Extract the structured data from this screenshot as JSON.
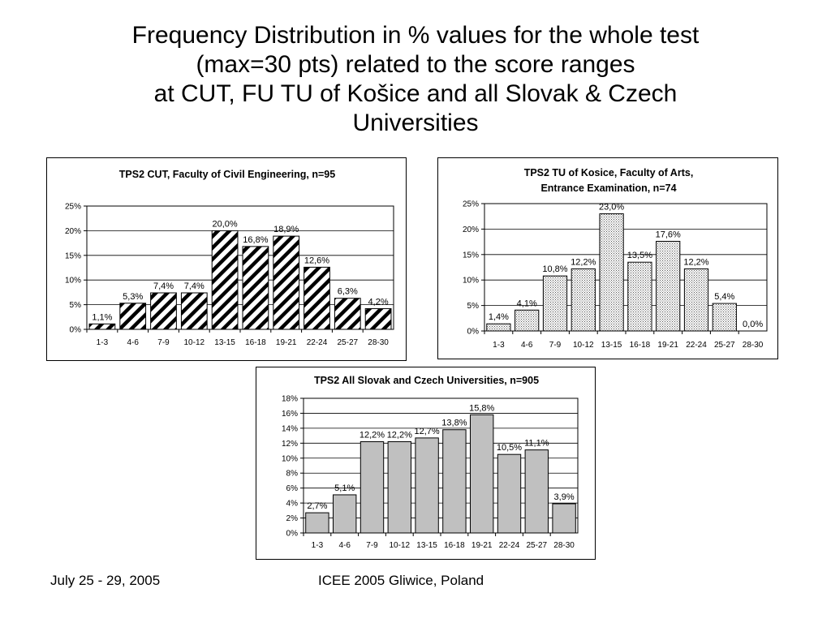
{
  "slide": {
    "title_lines": [
      "Frequency Distribution in % values for the whole test",
      "(max=30 pts) related to the score ranges",
      "at CUT, FU TU of Košice and all Slovak & Czech",
      "Universities"
    ]
  },
  "footer": {
    "date": "July 25 - 29, 2005",
    "event": "ICEE 2005 Gliwice, Poland"
  },
  "chart_data": [
    {
      "type": "bar",
      "title_lines": [
        "TPS2 CUT, Faculty of Civil Engineering, n=95"
      ],
      "categories": [
        "1-3",
        "4-6",
        "7-9",
        "10-12",
        "13-15",
        "16-18",
        "19-21",
        "22-24",
        "25-27",
        "28-30"
      ],
      "values": [
        1.1,
        5.3,
        7.4,
        7.4,
        20.0,
        16.8,
        18.9,
        12.6,
        6.3,
        4.2
      ],
      "data_labels": [
        "1,1%",
        "5,3%",
        "7,4%",
        "7,4%",
        "20,0%",
        "16,8%",
        "18,9%",
        "12,6%",
        "6,3%",
        "4,2%"
      ],
      "yticks": [
        "0%",
        "5%",
        "10%",
        "15%",
        "20%",
        "25%"
      ],
      "ylim": [
        0,
        25
      ],
      "grid": true,
      "bar_fill": "diagonal-hatch",
      "colors": {
        "fill": "#ffffff",
        "pattern": "#000000",
        "stroke": "#000000",
        "grid": "#000000"
      }
    },
    {
      "type": "bar",
      "title_lines": [
        "TPS2 TU of Kosice, Faculty of Arts,",
        "Entrance Examination, n=74"
      ],
      "categories": [
        "1-3",
        "4-6",
        "7-9",
        "10-12",
        "13-15",
        "16-18",
        "19-21",
        "22-24",
        "25-27",
        "28-30"
      ],
      "values": [
        1.4,
        4.1,
        10.8,
        12.2,
        23.0,
        13.5,
        17.6,
        12.2,
        5.4,
        0.0
      ],
      "data_labels": [
        "1,4%",
        "4,1%",
        "10,8%",
        "12,2%",
        "23,0%",
        "13,5%",
        "17,6%",
        "12,2%",
        "5,4%",
        "0,0%"
      ],
      "yticks": [
        "0%",
        "5%",
        "10%",
        "15%",
        "20%",
        "25%"
      ],
      "ylim": [
        0,
        25
      ],
      "grid": true,
      "bar_fill": "dotted",
      "colors": {
        "fill": "#ffffff",
        "pattern": "#555555",
        "stroke": "#000000",
        "grid": "#000000"
      }
    },
    {
      "type": "bar",
      "title_lines": [
        "TPS2 All Slovak and Czech Universities, n=905"
      ],
      "categories": [
        "1-3",
        "4-6",
        "7-9",
        "10-12",
        "13-15",
        "16-18",
        "19-21",
        "22-24",
        "25-27",
        "28-30"
      ],
      "values": [
        2.7,
        5.1,
        12.2,
        12.2,
        12.7,
        13.8,
        15.8,
        10.5,
        11.1,
        3.9
      ],
      "data_labels": [
        "2,7%",
        "5,1%",
        "12,2%",
        "12,2%",
        "12,7%",
        "13,8%",
        "15,8%",
        "10,5%",
        "11,1%",
        "3,9%"
      ],
      "yticks": [
        "0%",
        "2%",
        "4%",
        "6%",
        "8%",
        "10%",
        "12%",
        "14%",
        "16%",
        "18%"
      ],
      "ylim": [
        0,
        18
      ],
      "grid": true,
      "bar_fill": "solid",
      "colors": {
        "fill": "#c0c0c0",
        "pattern": "#c0c0c0",
        "stroke": "#000000",
        "grid": "#000000"
      }
    }
  ]
}
